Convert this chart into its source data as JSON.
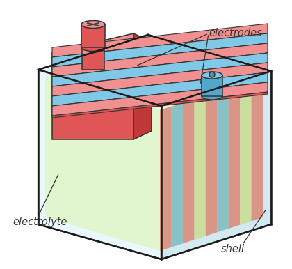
{
  "bg_color": "#ffffff",
  "shell_outline": "#1a1a1a",
  "shell_top_color": "#c8ecf5",
  "shell_left_color": "#daf3fa",
  "shell_right_color": "#b0d8e8",
  "shell_alpha": 0.55,
  "elec_color": "#e8f8d0",
  "elec_left_color": "#e0f5c8",
  "elec_right_color": "#d0eab8",
  "red_top": "#f09090",
  "red_mid": "#e05555",
  "red_dark": "#c03838",
  "blue_top": "#80c8e8",
  "blue_mid": "#50a8cc",
  "blue_dark": "#3088ac",
  "plate_colors": [
    "#e06060",
    "#58a8cc",
    "#e06060",
    "#c8d888",
    "#e06060",
    "#58a8cc",
    "#e06060",
    "#c8d888",
    "#e06060"
  ],
  "annotation_color": "#333333",
  "label_electrodes": "electrodes",
  "label_electrolyte": "electrolyte",
  "label_shell": "shell",
  "label_fontsize": 10.5,
  "lw_shell": 1.8,
  "lw_inner": 1.0
}
